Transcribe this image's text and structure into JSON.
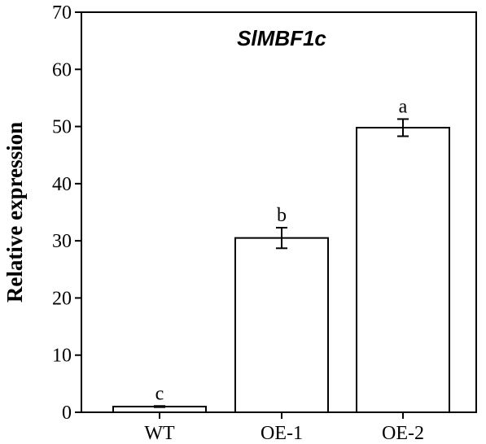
{
  "chart_data": {
    "type": "bar",
    "title": "SlMBF1c",
    "xlabel": "",
    "ylabel": "Relative expression",
    "categories": [
      "WT",
      "OE-1",
      "OE-2"
    ],
    "values": [
      1.0,
      30.5,
      49.8
    ],
    "errors": [
      0.1,
      1.8,
      1.5
    ],
    "significance_labels": [
      "c",
      "b",
      "a"
    ],
    "ylim": [
      0,
      70
    ],
    "yticks": [
      0,
      10,
      20,
      30,
      40,
      50,
      60,
      70
    ],
    "grid": false,
    "bar_fill": "#ffffff",
    "bar_stroke": "#000000"
  }
}
